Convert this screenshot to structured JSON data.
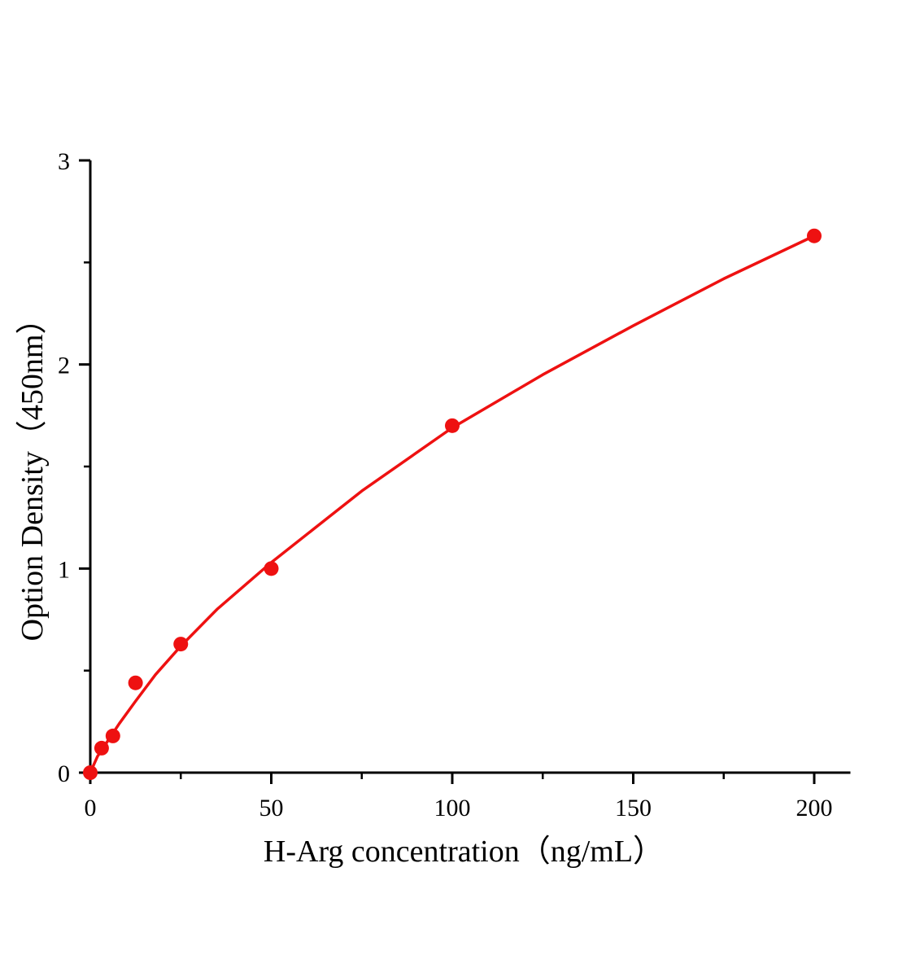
{
  "chart_data": {
    "type": "scatter",
    "title": "",
    "xlabel": "H-Arg concentration（ng/mL）",
    "ylabel": "Option Density（450nm）",
    "xlim": [
      0,
      210
    ],
    "ylim": [
      0,
      3
    ],
    "x_ticks": [
      0,
      50,
      100,
      150,
      200
    ],
    "x_minor_ticks": [
      25,
      75,
      125,
      175
    ],
    "y_ticks": [
      0,
      1,
      2,
      3
    ],
    "y_minor_ticks": [
      0.5,
      1.5,
      2.5
    ],
    "grid": false,
    "color": "#ee1111",
    "points": {
      "x": [
        0,
        3.125,
        6.25,
        12.5,
        25,
        50,
        100,
        200
      ],
      "y": [
        0,
        0.12,
        0.18,
        0.44,
        0.63,
        1.0,
        1.7,
        2.63
      ]
    },
    "fit_curve": {
      "x": [
        0,
        1,
        2,
        3.125,
        5,
        8,
        12.5,
        18,
        25,
        35,
        50,
        75,
        100,
        125,
        150,
        175,
        200
      ],
      "y": [
        0,
        0.04,
        0.08,
        0.11,
        0.16,
        0.24,
        0.35,
        0.48,
        0.62,
        0.8,
        1.03,
        1.38,
        1.69,
        1.95,
        2.19,
        2.42,
        2.63
      ]
    }
  }
}
